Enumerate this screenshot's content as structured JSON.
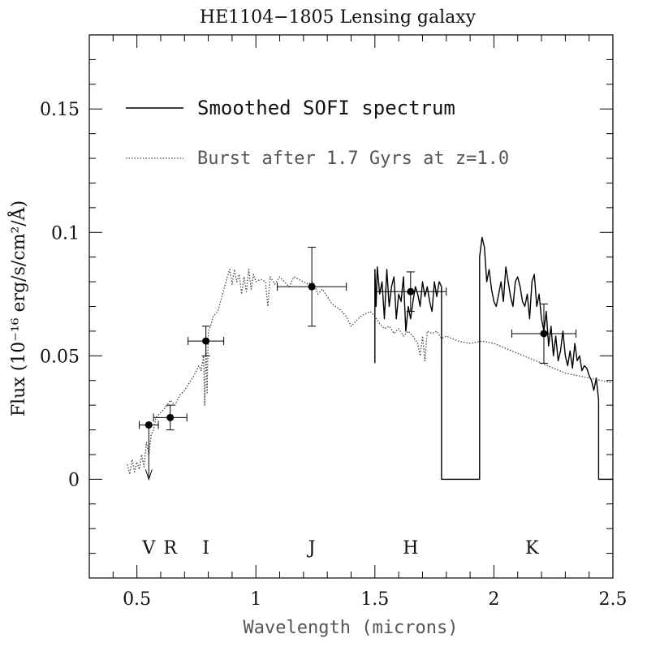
{
  "chart_data": {
    "type": "line",
    "title": "HE1104−1805 Lensing galaxy",
    "xlabel": "Wavelength (microns)",
    "ylabel": "Flux (10⁻¹⁶ erg/s/cm²/Å)",
    "xlim": [
      0.3,
      2.5
    ],
    "ylim": [
      -0.04,
      0.18
    ],
    "x_ticks": [
      0.5,
      1.0,
      1.5,
      2.0,
      2.5
    ],
    "x_tick_labels": [
      "0.5",
      "1",
      "1.5",
      "2",
      "2.5"
    ],
    "y_ticks": [
      0,
      0.05,
      0.1,
      0.15
    ],
    "y_tick_labels": [
      "0",
      "0.05",
      "0.1",
      "0.15"
    ],
    "legend": [
      {
        "label": "Smoothed SOFI spectrum",
        "style": "solid"
      },
      {
        "label": "Burst after 1.7 Gyrs at z=1.0",
        "style": "dotted"
      }
    ],
    "band_labels": [
      {
        "label": "V",
        "x": 0.55
      },
      {
        "label": "R",
        "x": 0.64
      },
      {
        "label": "I",
        "x": 0.79
      },
      {
        "label": "J",
        "x": 1.235
      },
      {
        "label": "H",
        "x": 1.65
      },
      {
        "label": "K",
        "x": 2.16
      }
    ],
    "photometry": [
      {
        "band": "V",
        "x": 0.55,
        "y": 0.022,
        "xerr": 0.04,
        "yerr": 0.0,
        "upper_limit": true
      },
      {
        "band": "R",
        "x": 0.64,
        "y": 0.025,
        "xerr": 0.07,
        "yerr": 0.005,
        "upper_limit": false
      },
      {
        "band": "I",
        "x": 0.79,
        "y": 0.056,
        "xerr": 0.075,
        "yerr": 0.006,
        "upper_limit": false
      },
      {
        "band": "J",
        "x": 1.235,
        "y": 0.078,
        "xerr": 0.145,
        "yerr": 0.016,
        "upper_limit": false
      },
      {
        "band": "H",
        "x": 1.65,
        "y": 0.076,
        "xerr": 0.15,
        "yerr": 0.008,
        "upper_limit": false
      },
      {
        "band": "K",
        "x": 2.21,
        "y": 0.059,
        "xerr": 0.135,
        "yerr": 0.012,
        "upper_limit": false
      }
    ],
    "series": [
      {
        "name": "Burst after 1.7 Gyrs at z=1.0",
        "style": "dotted",
        "x": [
          0.46,
          0.47,
          0.48,
          0.49,
          0.5,
          0.51,
          0.52,
          0.53,
          0.54,
          0.55,
          0.56,
          0.57,
          0.58,
          0.6,
          0.62,
          0.64,
          0.66,
          0.68,
          0.7,
          0.72,
          0.74,
          0.76,
          0.77,
          0.78,
          0.785,
          0.79,
          0.795,
          0.8,
          0.81,
          0.82,
          0.84,
          0.86,
          0.88,
          0.89,
          0.9,
          0.91,
          0.92,
          0.93,
          0.94,
          0.95,
          0.96,
          0.97,
          0.98,
          0.99,
          1.0,
          1.02,
          1.04,
          1.05,
          1.06,
          1.08,
          1.1,
          1.12,
          1.14,
          1.16,
          1.18,
          1.2,
          1.22,
          1.24,
          1.26,
          1.28,
          1.3,
          1.32,
          1.35,
          1.38,
          1.4,
          1.42,
          1.44,
          1.46,
          1.48,
          1.5,
          1.52,
          1.54,
          1.56,
          1.58,
          1.6,
          1.62,
          1.64,
          1.66,
          1.68,
          1.69,
          1.7,
          1.71,
          1.72,
          1.74,
          1.76,
          1.78,
          1.8,
          1.85,
          1.9,
          1.95,
          2.0,
          2.05,
          2.1,
          2.15,
          2.2,
          2.25,
          2.3,
          2.35,
          2.4,
          2.45,
          2.5
        ],
        "y": [
          0.006,
          0.002,
          0.008,
          0.003,
          0.007,
          0.004,
          0.01,
          0.005,
          0.015,
          0.01,
          0.018,
          0.02,
          0.025,
          0.027,
          0.029,
          0.032,
          0.03,
          0.034,
          0.036,
          0.039,
          0.042,
          0.046,
          0.044,
          0.05,
          0.03,
          0.055,
          0.035,
          0.06,
          0.062,
          0.066,
          0.068,
          0.075,
          0.082,
          0.085,
          0.079,
          0.085,
          0.08,
          0.083,
          0.075,
          0.082,
          0.076,
          0.085,
          0.077,
          0.083,
          0.08,
          0.081,
          0.08,
          0.07,
          0.082,
          0.079,
          0.082,
          0.08,
          0.078,
          0.082,
          0.081,
          0.08,
          0.079,
          0.08,
          0.075,
          0.077,
          0.074,
          0.071,
          0.069,
          0.066,
          0.062,
          0.064,
          0.066,
          0.067,
          0.068,
          0.066,
          0.063,
          0.061,
          0.062,
          0.059,
          0.061,
          0.058,
          0.06,
          0.058,
          0.055,
          0.05,
          0.058,
          0.048,
          0.06,
          0.059,
          0.06,
          0.057,
          0.058,
          0.056,
          0.055,
          0.056,
          0.055,
          0.053,
          0.051,
          0.049,
          0.047,
          0.045,
          0.043,
          0.042,
          0.041,
          0.04,
          0.039
        ]
      },
      {
        "name": "Smoothed SOFI spectrum",
        "style": "solid",
        "x": [
          1.5,
          1.5,
          1.505,
          1.51,
          1.52,
          1.53,
          1.54,
          1.55,
          1.56,
          1.57,
          1.58,
          1.59,
          1.6,
          1.61,
          1.62,
          1.63,
          1.64,
          1.65,
          1.66,
          1.67,
          1.68,
          1.69,
          1.7,
          1.71,
          1.72,
          1.73,
          1.74,
          1.75,
          1.76,
          1.77,
          1.78,
          1.78,
          1.94,
          1.94,
          1.95,
          1.96,
          1.97,
          1.98,
          1.99,
          2.0,
          2.01,
          2.02,
          2.03,
          2.04,
          2.05,
          2.06,
          2.07,
          2.08,
          2.09,
          2.1,
          2.11,
          2.12,
          2.13,
          2.14,
          2.15,
          2.16,
          2.17,
          2.18,
          2.19,
          2.2,
          2.21,
          2.22,
          2.23,
          2.24,
          2.25,
          2.26,
          2.27,
          2.28,
          2.29,
          2.3,
          2.31,
          2.32,
          2.33,
          2.34,
          2.35,
          2.36,
          2.37,
          2.38,
          2.39,
          2.4,
          2.41,
          2.42,
          2.43,
          2.44,
          2.44,
          2.5
        ],
        "y": [
          0.047,
          0.085,
          0.07,
          0.086,
          0.075,
          0.08,
          0.065,
          0.085,
          0.07,
          0.078,
          0.082,
          0.065,
          0.075,
          0.072,
          0.082,
          0.06,
          0.07,
          0.065,
          0.072,
          0.078,
          0.075,
          0.07,
          0.08,
          0.074,
          0.078,
          0.072,
          0.068,
          0.08,
          0.074,
          0.08,
          0.078,
          0.0,
          0.0,
          0.09,
          0.098,
          0.094,
          0.08,
          0.085,
          0.077,
          0.072,
          0.07,
          0.075,
          0.08,
          0.072,
          0.086,
          0.08,
          0.074,
          0.07,
          0.08,
          0.082,
          0.078,
          0.072,
          0.07,
          0.075,
          0.065,
          0.08,
          0.083,
          0.07,
          0.075,
          0.065,
          0.06,
          0.068,
          0.054,
          0.062,
          0.05,
          0.058,
          0.048,
          0.052,
          0.06,
          0.05,
          0.046,
          0.052,
          0.045,
          0.055,
          0.048,
          0.05,
          0.044,
          0.046,
          0.045,
          0.042,
          0.04,
          0.036,
          0.041,
          0.032,
          0.0,
          0.0
        ]
      }
    ]
  }
}
